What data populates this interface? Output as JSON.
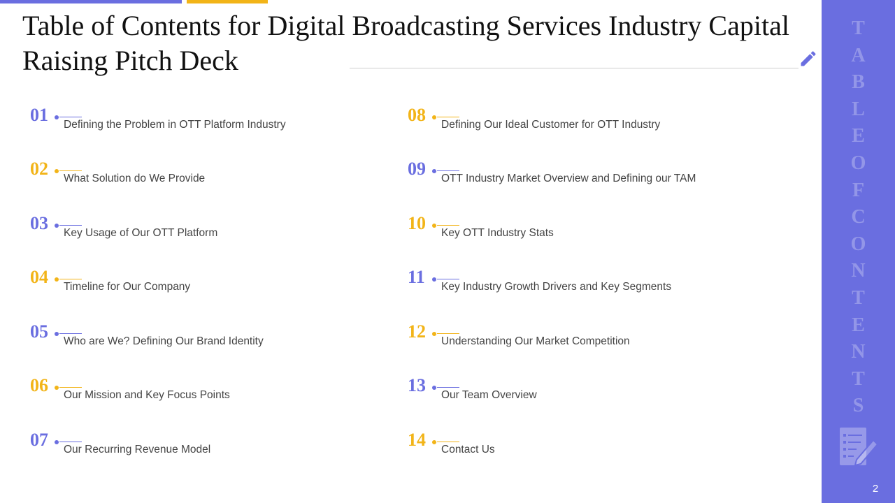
{
  "title": "Table of  Contents for Digital Broadcasting Services Industry Capital Raising Pitch Deck",
  "sidebar": {
    "vertical_label": "TABLE OF CONTENTS",
    "page_number": "2"
  },
  "colors": {
    "accent_purple": "#6a6ee0",
    "accent_yellow": "#f2b418"
  },
  "items": [
    {
      "num": "01",
      "label": "Defining the Problem in OTT Platform Industry",
      "color": "purple"
    },
    {
      "num": "02",
      "label": "What Solution do We Provide",
      "color": "yellow"
    },
    {
      "num": "03",
      "label": "Key Usage of Our OTT Platform",
      "color": "purple"
    },
    {
      "num": "04",
      "label": "Timeline for Our Company",
      "color": "yellow"
    },
    {
      "num": "05",
      "label": "Who are We? Defining Our Brand Identity",
      "color": "purple"
    },
    {
      "num": "06",
      "label": "Our Mission and Key Focus Points",
      "color": "yellow"
    },
    {
      "num": "07",
      "label": "Our Recurring Revenue Model",
      "color": "purple"
    },
    {
      "num": "08",
      "label": "Defining Our Ideal Customer for OTT Industry",
      "color": "yellow"
    },
    {
      "num": "09",
      "label": "OTT Industry  Market Overview and Defining our TAM",
      "color": "purple"
    },
    {
      "num": "10",
      "label": "Key OTT Industry  Stats",
      "color": "yellow"
    },
    {
      "num": "11",
      "label": "Key Industry  Growth Drivers and Key Segments",
      "color": "purple"
    },
    {
      "num": "12",
      "label": "Understanding Our Market Competition",
      "color": "yellow"
    },
    {
      "num": "13",
      "label": "Our Team Overview",
      "color": "purple"
    },
    {
      "num": "14",
      "label": "Contact Us",
      "color": "yellow"
    }
  ]
}
